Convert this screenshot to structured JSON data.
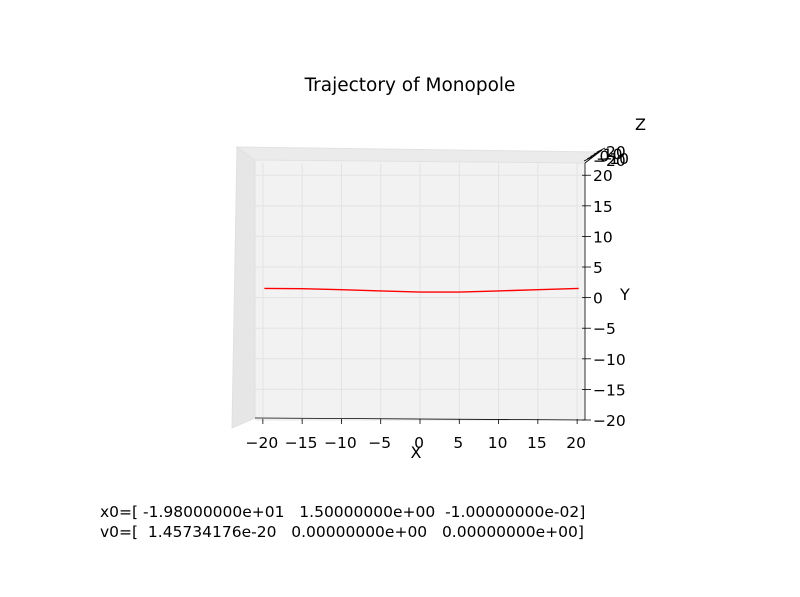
{
  "chart_data": {
    "type": "line3d",
    "title": "Trajectory of Monopole",
    "xlabel": "X",
    "ylabel": "Y",
    "zlabel": "Z",
    "xlim": [
      -21,
      21
    ],
    "ylim": [
      -20,
      22
    ],
    "x_ticks": [
      -20,
      -15,
      -10,
      -5,
      0,
      5,
      10,
      15,
      20
    ],
    "y_ticks": [
      -20,
      -15,
      -10,
      -5,
      0,
      5,
      10,
      15,
      20
    ],
    "z_tick_labels": [
      "20",
      "10",
      "0",
      "-10",
      "-20"
    ],
    "grid": true,
    "series": [
      {
        "color": "#ff0000",
        "x": [
          -19.8,
          -15,
          -10,
          -5,
          0,
          5,
          10,
          15,
          20.2
        ],
        "y": [
          1.5,
          1.45,
          1.3,
          1.1,
          0.9,
          0.9,
          1.1,
          1.3,
          1.5
        ]
      }
    ]
  },
  "annotations": {
    "x0": "x0=[ -1.98000000e+01   1.50000000e+00  -1.00000000e-02]",
    "v0": "v0=[  1.45734176e-20   0.00000000e+00   0.00000000e+00]"
  }
}
